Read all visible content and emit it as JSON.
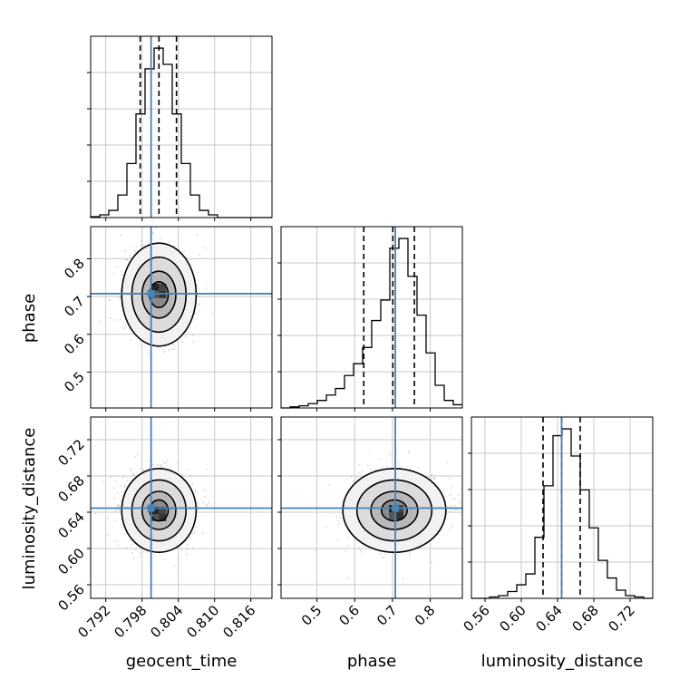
{
  "chart_data": {
    "type": "corner",
    "parameters": [
      "geocent_time",
      "phase",
      "luminosity_distance"
    ],
    "truths": {
      "geocent_time": 0.7995,
      "phase": 0.7075,
      "luminosity_distance": 0.6445
    },
    "colors": {
      "truth": "#4682b4",
      "hist": "#000000",
      "grid": "#c8c8c8",
      "scatter": "#888888"
    },
    "grid": true,
    "axes": {
      "geocent_time": {
        "range": [
          0.7895,
          0.8195
        ],
        "ticks": [
          "0.792",
          "0.798",
          "0.804",
          "0.810",
          "0.816"
        ],
        "tick_values": [
          0.792,
          0.798,
          0.804,
          0.81,
          0.816
        ]
      },
      "phase": {
        "range": [
          0.405,
          0.885
        ],
        "ticks": [
          "0.5",
          "0.6",
          "0.7",
          "0.8"
        ],
        "tick_values": [
          0.5,
          0.6,
          0.7,
          0.8
        ]
      },
      "luminosity_distance": {
        "range": [
          0.545,
          0.745
        ],
        "ticks": [
          "0.56",
          "0.60",
          "0.64",
          "0.68",
          "0.72"
        ],
        "tick_values": [
          0.56,
          0.6,
          0.64,
          0.68,
          0.72
        ]
      }
    },
    "diagonal": [
      {
        "parameter": "geocent_time",
        "quantiles": [
          0.7977,
          0.8008,
          0.8037
        ],
        "bin_edges": [
          0.7895,
          0.791,
          0.7925,
          0.794,
          0.7955,
          0.797,
          0.7985,
          0.8,
          0.8015,
          0.803,
          0.8045,
          0.806,
          0.8075,
          0.809,
          0.8105,
          0.812,
          0.8135,
          0.815,
          0.8165,
          0.818,
          0.8195
        ],
        "counts": [
          1,
          3,
          8,
          25,
          60,
          115,
          165,
          188,
          170,
          115,
          60,
          25,
          8,
          3,
          0,
          0,
          0,
          0,
          0,
          0
        ]
      },
      {
        "parameter": "phase",
        "quantiles": [
          0.624,
          0.701,
          0.758
        ],
        "bin_edges": [
          0.405,
          0.429,
          0.453,
          0.477,
          0.501,
          0.525,
          0.549,
          0.573,
          0.597,
          0.621,
          0.645,
          0.669,
          0.693,
          0.717,
          0.741,
          0.765,
          0.789,
          0.813,
          0.837,
          0.861,
          0.885
        ],
        "counts": [
          0,
          1,
          2,
          4,
          7,
          12,
          18,
          30,
          41,
          56,
          81,
          100,
          148,
          157,
          122,
          86,
          51,
          21,
          7,
          3
        ]
      },
      {
        "parameter": "luminosity_distance",
        "quantiles": [
          0.624,
          0.6445,
          0.665
        ],
        "bin_edges": [
          0.545,
          0.555,
          0.565,
          0.575,
          0.585,
          0.595,
          0.605,
          0.615,
          0.625,
          0.635,
          0.645,
          0.655,
          0.665,
          0.675,
          0.685,
          0.695,
          0.705,
          0.715,
          0.725,
          0.735,
          0.745
        ],
        "counts": [
          0,
          0,
          1,
          2,
          5,
          10,
          18,
          45,
          83,
          120,
          125,
          105,
          80,
          52,
          28,
          15,
          6,
          2,
          1,
          0
        ]
      }
    ],
    "off_diagonal": [
      {
        "x": "geocent_time",
        "y": "phase",
        "center": [
          0.8008,
          0.705
        ],
        "sigma": [
          0.0028,
          0.062
        ],
        "peak_cell": [
          0.8008,
          0.715
        ]
      },
      {
        "x": "geocent_time",
        "y": "luminosity_distance",
        "center": [
          0.8008,
          0.642
        ],
        "sigma": [
          0.0028,
          0.021
        ],
        "peak_cell": [
          0.8008,
          0.638
        ]
      },
      {
        "x": "phase",
        "y": "luminosity_distance",
        "center": [
          0.705,
          0.642
        ],
        "sigma": [
          0.062,
          0.021
        ],
        "peak_cell": [
          0.71,
          0.64
        ]
      }
    ],
    "xlabels": [
      "geocent_time",
      "phase",
      "luminosity_distance"
    ],
    "ylabels": [
      "",
      "phase",
      "luminosity_distance"
    ]
  }
}
